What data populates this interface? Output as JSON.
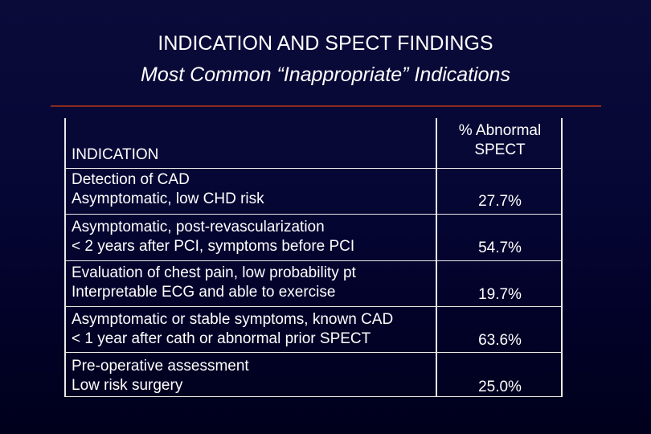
{
  "slide": {
    "title": "INDICATION AND SPECT FINDINGS",
    "subtitle": "Most Common “Inappropriate” Indications"
  },
  "table": {
    "header_indication": "INDICATION",
    "header_pct_line1": "% Abnormal",
    "header_pct_line2": "SPECT",
    "rows": [
      {
        "line1": "Detection of CAD",
        "line2": "Asymptomatic, low CHD risk",
        "pct": "27.7%"
      },
      {
        "line1": "Asymptomatic, post-revascularization",
        "line2": "< 2 years after PCI, symptoms before PCI",
        "pct": "54.7%"
      },
      {
        "line1": "Evaluation of chest pain, low probability pt",
        "line2": "Interpretable ECG and able to exercise",
        "pct": "19.7%"
      },
      {
        "line1": "Asymptomatic or stable symptoms, known CAD",
        "line2": "< 1 year after cath or abnormal prior SPECT",
        "pct": "63.6%"
      },
      {
        "line1": "Pre-operative assessment",
        "line2": "Low risk surgery",
        "pct": "25.0%"
      }
    ]
  }
}
